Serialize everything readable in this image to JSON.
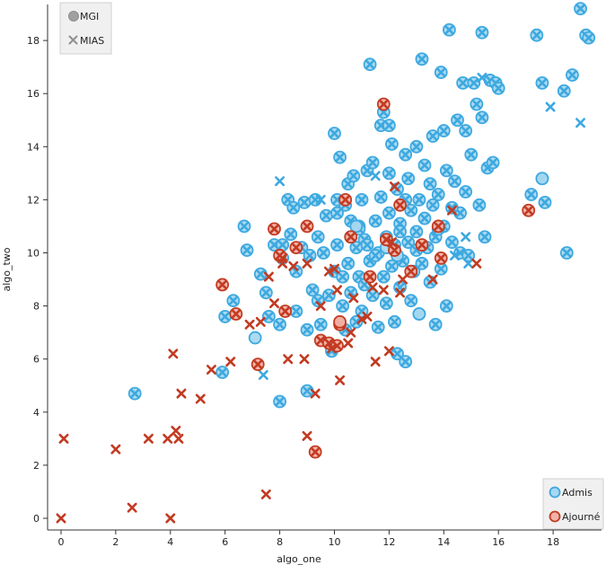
{
  "chart_data": {
    "type": "scatter",
    "xlabel": "algo_one",
    "ylabel": "algo_two",
    "xlim": [
      -0.5,
      19.5
    ],
    "ylim": [
      -0.6,
      19.6
    ],
    "xticks": [
      "0",
      "2",
      "4",
      "6",
      "8",
      "10",
      "12",
      "14",
      "16",
      "18"
    ],
    "yticks": [
      "0",
      "2",
      "4",
      "6",
      "8",
      "10",
      "12",
      "14",
      "16",
      "18"
    ],
    "grid": false,
    "shape_legend": {
      "placement": "top-left",
      "items": [
        {
          "label": "MGI",
          "marker": "circle"
        },
        {
          "label": "MIAS",
          "marker": "x"
        }
      ]
    },
    "color_legend": {
      "placement": "bottom-right",
      "items": [
        {
          "label": "Admis",
          "color": "#3da9e0"
        },
        {
          "label": "Ajourné",
          "color": "#c23b22"
        }
      ]
    },
    "colors": {
      "Admis": {
        "fill": "#a8d8f0",
        "stroke": "#3da9e0"
      },
      "Ajourné": {
        "fill": "#f2b2a6",
        "stroke": "#c23b22"
      }
    },
    "series": [
      {
        "name": "Admis",
        "marker": "both",
        "points": [
          [
            2.7,
            4.7
          ],
          [
            5.9,
            5.5
          ],
          [
            6.0,
            7.6
          ],
          [
            6.3,
            8.2
          ],
          [
            6.7,
            11.0
          ],
          [
            6.8,
            10.1
          ],
          [
            7.3,
            9.2
          ],
          [
            7.5,
            8.5
          ],
          [
            7.6,
            7.6
          ],
          [
            7.8,
            10.3
          ],
          [
            8.0,
            4.4
          ],
          [
            8.0,
            7.3
          ],
          [
            8.1,
            9.8
          ],
          [
            8.1,
            10.3
          ],
          [
            8.3,
            12.0
          ],
          [
            8.4,
            10.7
          ],
          [
            8.5,
            11.7
          ],
          [
            8.6,
            7.8
          ],
          [
            8.6,
            9.3
          ],
          [
            8.8,
            10.2
          ],
          [
            8.9,
            11.9
          ],
          [
            9.0,
            7.1
          ],
          [
            9.0,
            4.8
          ],
          [
            9.1,
            9.9
          ],
          [
            9.2,
            8.6
          ],
          [
            9.3,
            12.0
          ],
          [
            9.4,
            10.6
          ],
          [
            9.4,
            8.2
          ],
          [
            9.5,
            7.3
          ],
          [
            9.6,
            10.0
          ],
          [
            9.7,
            11.4
          ],
          [
            9.8,
            8.4
          ],
          [
            9.9,
            6.3
          ],
          [
            10.0,
            9.3
          ],
          [
            10.0,
            14.5
          ],
          [
            10.1,
            11.5
          ],
          [
            10.1,
            12.0
          ],
          [
            10.1,
            10.3
          ],
          [
            10.2,
            13.6
          ],
          [
            10.3,
            9.1
          ],
          [
            10.3,
            8.0
          ],
          [
            10.4,
            7.1
          ],
          [
            10.4,
            11.8
          ],
          [
            10.5,
            12.6
          ],
          [
            10.5,
            9.6
          ],
          [
            10.6,
            10.6
          ],
          [
            10.6,
            8.5
          ],
          [
            10.7,
            12.9
          ],
          [
            10.8,
            7.4
          ],
          [
            10.8,
            10.2
          ],
          [
            10.9,
            11.0
          ],
          [
            10.9,
            9.1
          ],
          [
            11.0,
            12.0
          ],
          [
            11.0,
            7.8
          ],
          [
            11.1,
            8.8
          ],
          [
            11.1,
            10.5
          ],
          [
            11.2,
            13.1
          ],
          [
            11.3,
            9.7
          ],
          [
            11.3,
            17.1
          ],
          [
            11.4,
            13.4
          ],
          [
            11.4,
            8.4
          ],
          [
            11.5,
            11.2
          ],
          [
            11.6,
            10.0
          ],
          [
            11.6,
            7.2
          ],
          [
            11.7,
            12.1
          ],
          [
            11.7,
            14.8
          ],
          [
            11.8,
            15.3
          ],
          [
            11.8,
            9.1
          ],
          [
            11.9,
            10.6
          ],
          [
            11.9,
            8.1
          ],
          [
            12.0,
            11.5
          ],
          [
            12.0,
            13.0
          ],
          [
            12.1,
            9.5
          ],
          [
            12.1,
            14.1
          ],
          [
            12.2,
            7.4
          ],
          [
            12.2,
            10.3
          ],
          [
            12.3,
            12.4
          ],
          [
            12.3,
            6.2
          ],
          [
            12.4,
            8.7
          ],
          [
            12.4,
            11.1
          ],
          [
            12.5,
            9.7
          ],
          [
            12.6,
            13.7
          ],
          [
            12.6,
            5.9
          ],
          [
            12.7,
            10.4
          ],
          [
            12.7,
            12.8
          ],
          [
            12.8,
            8.2
          ],
          [
            12.8,
            11.6
          ],
          [
            12.9,
            9.3
          ],
          [
            13.0,
            14.0
          ],
          [
            13.0,
            10.8
          ],
          [
            13.1,
            7.7
          ],
          [
            13.1,
            12.0
          ],
          [
            13.2,
            17.3
          ],
          [
            13.2,
            9.6
          ],
          [
            13.3,
            11.3
          ],
          [
            13.3,
            13.3
          ],
          [
            13.4,
            10.2
          ],
          [
            13.5,
            12.6
          ],
          [
            13.5,
            8.9
          ],
          [
            13.6,
            14.4
          ],
          [
            13.6,
            11.8
          ],
          [
            13.7,
            7.3
          ],
          [
            13.7,
            10.6
          ],
          [
            13.8,
            12.2
          ],
          [
            13.9,
            9.4
          ],
          [
            13.9,
            16.8
          ],
          [
            14.0,
            11.0
          ],
          [
            14.0,
            14.6
          ],
          [
            14.1,
            8.0
          ],
          [
            14.1,
            13.1
          ],
          [
            14.2,
            18.4
          ],
          [
            14.3,
            10.4
          ],
          [
            14.4,
            12.7
          ],
          [
            14.5,
            15.0
          ],
          [
            14.6,
            10.0
          ],
          [
            14.6,
            11.5
          ],
          [
            14.7,
            16.4
          ],
          [
            14.8,
            12.3
          ],
          [
            14.8,
            14.6
          ],
          [
            14.9,
            9.9
          ],
          [
            15.0,
            13.7
          ],
          [
            15.1,
            16.4
          ],
          [
            15.2,
            15.6
          ],
          [
            15.3,
            11.8
          ],
          [
            15.4,
            15.1
          ],
          [
            15.4,
            18.3
          ],
          [
            15.5,
            10.6
          ],
          [
            15.6,
            13.2
          ],
          [
            15.7,
            16.5
          ],
          [
            15.8,
            13.4
          ],
          [
            15.9,
            16.4
          ],
          [
            16.0,
            16.2
          ],
          [
            17.2,
            12.2
          ],
          [
            17.4,
            18.2
          ],
          [
            17.6,
            16.4
          ],
          [
            17.6,
            12.8
          ],
          [
            17.7,
            11.9
          ],
          [
            18.4,
            16.1
          ],
          [
            18.5,
            10.0
          ],
          [
            18.7,
            16.7
          ],
          [
            19.0,
            19.2
          ],
          [
            19.2,
            18.2
          ],
          [
            19.3,
            18.1
          ],
          [
            12.0,
            14.8
          ],
          [
            11.5,
            9.9
          ],
          [
            12.4,
            10.8
          ],
          [
            13.0,
            10.1
          ],
          [
            10.9,
            10.9
          ],
          [
            11.2,
            10.3
          ],
          [
            12.6,
            12.0
          ],
          [
            13.8,
            10.9
          ],
          [
            14.3,
            11.7
          ],
          [
            10.6,
            11.2
          ]
        ]
      },
      {
        "name": "Admis",
        "marker": "circle",
        "points": [
          [
            7.1,
            6.8
          ],
          [
            10.8,
            11.0
          ],
          [
            13.1,
            7.7
          ],
          [
            17.6,
            12.8
          ],
          [
            11.9,
            10.2
          ],
          [
            12.3,
            9.9
          ]
        ]
      },
      {
        "name": "Admis",
        "marker": "x",
        "points": [
          [
            8.0,
            12.7
          ],
          [
            9.5,
            12.0
          ],
          [
            7.4,
            5.4
          ],
          [
            11.5,
            12.9
          ],
          [
            14.4,
            9.9
          ],
          [
            14.8,
            10.6
          ],
          [
            15.4,
            16.6
          ],
          [
            17.9,
            15.5
          ],
          [
            19.0,
            14.9
          ],
          [
            14.9,
            9.6
          ]
        ]
      },
      {
        "name": "Ajourné",
        "marker": "both",
        "points": [
          [
            5.9,
            8.8
          ],
          [
            6.4,
            7.7
          ],
          [
            7.2,
            5.8
          ],
          [
            7.8,
            10.9
          ],
          [
            8.0,
            9.9
          ],
          [
            8.2,
            7.8
          ],
          [
            8.6,
            10.2
          ],
          [
            9.3,
            2.5
          ],
          [
            9.5,
            6.7
          ],
          [
            9.8,
            6.6
          ],
          [
            10.1,
            6.5
          ],
          [
            10.2,
            7.3
          ],
          [
            10.4,
            12.0
          ],
          [
            11.3,
            9.1
          ],
          [
            11.8,
            15.6
          ],
          [
            12.2,
            10.1
          ],
          [
            12.4,
            11.8
          ],
          [
            12.8,
            9.3
          ],
          [
            13.2,
            10.3
          ],
          [
            13.8,
            11.0
          ],
          [
            13.9,
            9.8
          ],
          [
            17.1,
            11.6
          ],
          [
            9.0,
            11.0
          ],
          [
            11.9,
            10.5
          ],
          [
            10.6,
            10.6
          ]
        ]
      },
      {
        "name": "Ajourné",
        "marker": "circle",
        "points": [
          [
            10.2,
            7.4
          ]
        ]
      },
      {
        "name": "Ajourné",
        "marker": "x",
        "points": [
          [
            0.0,
            0.0
          ],
          [
            0.1,
            3.0
          ],
          [
            2.0,
            2.6
          ],
          [
            2.6,
            0.4
          ],
          [
            3.2,
            3.0
          ],
          [
            3.9,
            3.0
          ],
          [
            4.0,
            0.0
          ],
          [
            4.1,
            6.2
          ],
          [
            4.2,
            3.3
          ],
          [
            4.3,
            3.0
          ],
          [
            4.4,
            4.7
          ],
          [
            5.1,
            4.5
          ],
          [
            5.5,
            5.6
          ],
          [
            6.2,
            5.9
          ],
          [
            6.9,
            7.3
          ],
          [
            7.3,
            7.4
          ],
          [
            7.5,
            0.9
          ],
          [
            7.6,
            9.1
          ],
          [
            7.8,
            8.1
          ],
          [
            8.1,
            9.6
          ],
          [
            8.3,
            6.0
          ],
          [
            8.5,
            9.5
          ],
          [
            8.9,
            6.0
          ],
          [
            9.0,
            3.1
          ],
          [
            9.3,
            4.7
          ],
          [
            9.5,
            8.0
          ],
          [
            9.8,
            9.3
          ],
          [
            10.0,
            9.4
          ],
          [
            10.1,
            8.6
          ],
          [
            10.2,
            5.2
          ],
          [
            10.5,
            6.6
          ],
          [
            10.7,
            8.3
          ],
          [
            11.0,
            7.5
          ],
          [
            11.2,
            7.6
          ],
          [
            11.4,
            8.7
          ],
          [
            11.5,
            5.9
          ],
          [
            11.8,
            8.6
          ],
          [
            12.0,
            6.3
          ],
          [
            12.2,
            12.5
          ],
          [
            12.5,
            9.0
          ],
          [
            14.3,
            11.6
          ],
          [
            15.2,
            9.6
          ],
          [
            10.6,
            7.0
          ],
          [
            11.9,
            10.5
          ],
          [
            12.1,
            10.4
          ],
          [
            12.4,
            8.5
          ],
          [
            13.6,
            9.0
          ],
          [
            9.0,
            9.6
          ],
          [
            8.1,
            9.8
          ],
          [
            9.9,
            6.4
          ]
        ]
      }
    ]
  }
}
